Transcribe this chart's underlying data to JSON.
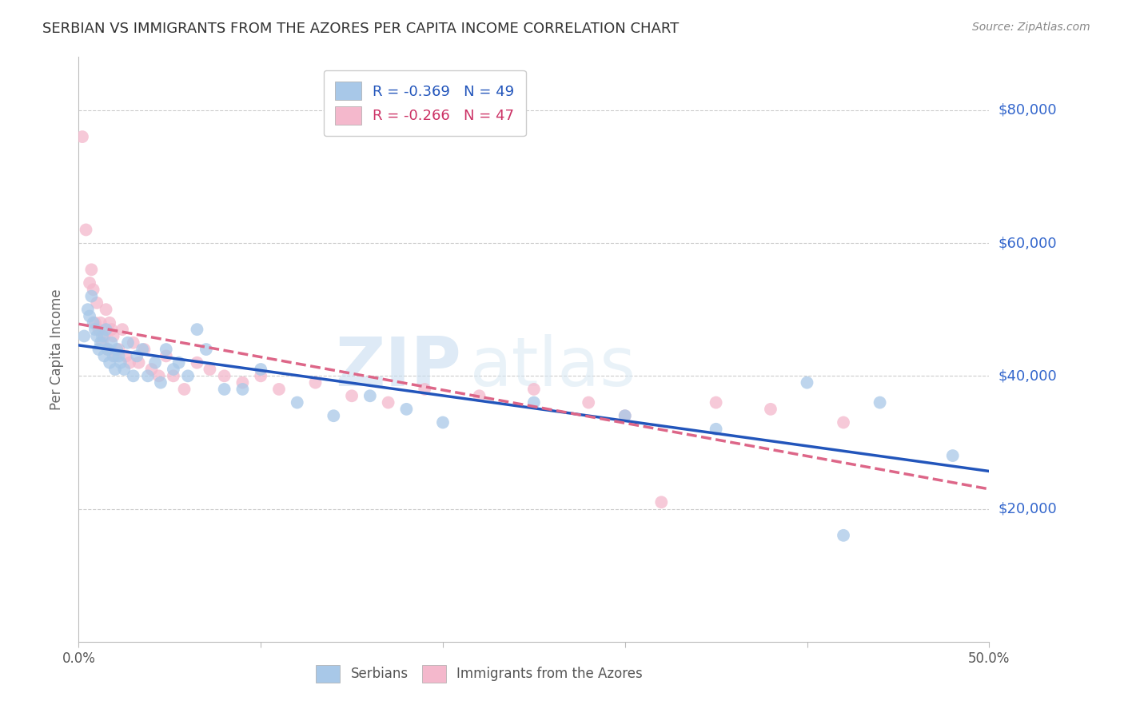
{
  "title": "SERBIAN VS IMMIGRANTS FROM THE AZORES PER CAPITA INCOME CORRELATION CHART",
  "source": "Source: ZipAtlas.com",
  "ylabel": "Per Capita Income",
  "legend_serbian": "R = -0.369   N = 49",
  "legend_azores": "R = -0.266   N = 47",
  "watermark_zip": "ZIP",
  "watermark_atlas": "atlas",
  "bg_color": "#ffffff",
  "grid_color": "#cccccc",
  "title_color": "#333333",
  "source_color": "#888888",
  "serbian_color": "#a8c8e8",
  "azores_color": "#f4b8cc",
  "serbian_line_color": "#2255bb",
  "azores_line_color": "#dd6688",
  "ytick_color": "#3366cc",
  "ytick_labels": [
    "$20,000",
    "$40,000",
    "$60,000",
    "$80,000"
  ],
  "ytick_values": [
    20000,
    40000,
    60000,
    80000
  ],
  "ylim": [
    0,
    88000
  ],
  "xlim": [
    0.0,
    0.5
  ],
  "serbian_x": [
    0.003,
    0.005,
    0.006,
    0.007,
    0.008,
    0.009,
    0.01,
    0.011,
    0.012,
    0.013,
    0.014,
    0.015,
    0.016,
    0.017,
    0.018,
    0.019,
    0.02,
    0.021,
    0.022,
    0.023,
    0.025,
    0.027,
    0.03,
    0.032,
    0.035,
    0.038,
    0.042,
    0.045,
    0.048,
    0.052,
    0.055,
    0.06,
    0.065,
    0.07,
    0.08,
    0.09,
    0.1,
    0.12,
    0.14,
    0.16,
    0.18,
    0.2,
    0.25,
    0.3,
    0.35,
    0.4,
    0.42,
    0.44,
    0.48
  ],
  "serbian_y": [
    46000,
    50000,
    49000,
    52000,
    48000,
    47000,
    46000,
    44000,
    45000,
    46000,
    43000,
    47000,
    44000,
    42000,
    45000,
    43000,
    41000,
    44000,
    43000,
    42000,
    41000,
    45000,
    40000,
    43000,
    44000,
    40000,
    42000,
    39000,
    44000,
    41000,
    42000,
    40000,
    47000,
    44000,
    38000,
    38000,
    41000,
    36000,
    34000,
    37000,
    35000,
    33000,
    36000,
    34000,
    32000,
    39000,
    16000,
    36000,
    28000
  ],
  "azores_x": [
    0.002,
    0.004,
    0.006,
    0.007,
    0.008,
    0.009,
    0.01,
    0.011,
    0.012,
    0.013,
    0.014,
    0.015,
    0.016,
    0.017,
    0.018,
    0.019,
    0.02,
    0.022,
    0.024,
    0.026,
    0.028,
    0.03,
    0.033,
    0.036,
    0.04,
    0.044,
    0.048,
    0.052,
    0.058,
    0.065,
    0.072,
    0.08,
    0.09,
    0.1,
    0.11,
    0.13,
    0.15,
    0.17,
    0.19,
    0.22,
    0.25,
    0.28,
    0.3,
    0.32,
    0.35,
    0.38,
    0.42
  ],
  "azores_y": [
    76000,
    62000,
    54000,
    56000,
    53000,
    48000,
    51000,
    47000,
    48000,
    45000,
    46000,
    50000,
    44000,
    48000,
    47000,
    46000,
    43000,
    44000,
    47000,
    43000,
    42000,
    45000,
    42000,
    44000,
    41000,
    40000,
    43000,
    40000,
    38000,
    42000,
    41000,
    40000,
    39000,
    40000,
    38000,
    39000,
    37000,
    36000,
    38000,
    37000,
    38000,
    36000,
    34000,
    21000,
    36000,
    35000,
    33000
  ]
}
